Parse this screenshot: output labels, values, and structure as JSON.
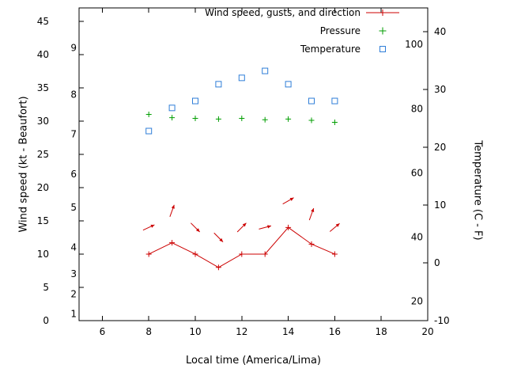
{
  "chart_data": {
    "type": "line",
    "title": "",
    "xlabel": "Local time (America/Lima)",
    "ylabel_left": "Wind speed (kt - Beaufort)",
    "ylabel_right": "Temperature (C - F)",
    "x_range": [
      5,
      20
    ],
    "x_ticks": [
      6,
      8,
      10,
      12,
      14,
      16,
      18,
      20
    ],
    "left_axis": {
      "unit": "kt",
      "range_kt": [
        0,
        47
      ],
      "ticks_kt": [
        0,
        5,
        10,
        15,
        20,
        25,
        30,
        35,
        40,
        45
      ],
      "beaufort_labels": [
        {
          "label": "1",
          "kt": 1
        },
        {
          "label": "2",
          "kt": 4
        },
        {
          "label": "3",
          "kt": 7
        },
        {
          "label": "4",
          "kt": 11
        },
        {
          "label": "5",
          "kt": 17
        },
        {
          "label": "6",
          "kt": 22
        },
        {
          "label": "7",
          "kt": 28
        },
        {
          "label": "8",
          "kt": 34
        },
        {
          "label": "9",
          "kt": 41
        }
      ]
    },
    "right_axis": {
      "unit": "C",
      "range_c": [
        -10,
        44.1
      ],
      "ticks_c": [
        -10,
        0,
        10,
        20,
        30,
        40
      ],
      "fahrenheit_labels": [
        "20",
        "40",
        "60",
        "80",
        "100"
      ]
    },
    "legend": [
      {
        "label": "Wind speed, gusts, and direction",
        "marker": "line-plus",
        "color": "#cc0000"
      },
      {
        "label": "Pressure",
        "marker": "plus",
        "color": "#009e00"
      },
      {
        "label": "Temperature",
        "marker": "open-square",
        "color": "#2f7ed8"
      }
    ],
    "x": [
      8,
      9,
      10,
      11,
      12,
      13,
      14,
      15,
      16
    ],
    "series": [
      {
        "name": "wind-speed",
        "axis": "left",
        "style": "line-plus",
        "color": "#cc0000",
        "values_kt": [
          10,
          11.7,
          10,
          8,
          10,
          10,
          14,
          11.5,
          10
        ]
      },
      {
        "name": "wind-gusts-direction",
        "axis": "left",
        "style": "arrow",
        "color": "#cc0000",
        "values_kt": [
          14,
          16.5,
          14,
          12.5,
          14,
          14,
          18,
          16,
          14
        ],
        "direction_deg": [
          25,
          70,
          -45,
          -45,
          45,
          15,
          30,
          70,
          40
        ]
      },
      {
        "name": "pressure",
        "axis": "left-position",
        "style": "plus",
        "color": "#009e00",
        "values_plot": [
          31,
          30.5,
          30.4,
          30.3,
          30.4,
          30.2,
          30.3,
          30.1,
          29.8
        ]
      },
      {
        "name": "temperature",
        "axis": "right",
        "style": "open-square",
        "color": "#2f7ed8",
        "values_c": [
          22.8,
          26.8,
          28.0,
          30.9,
          32.0,
          33.2,
          30.9,
          28.0,
          28.0
        ]
      }
    ]
  }
}
